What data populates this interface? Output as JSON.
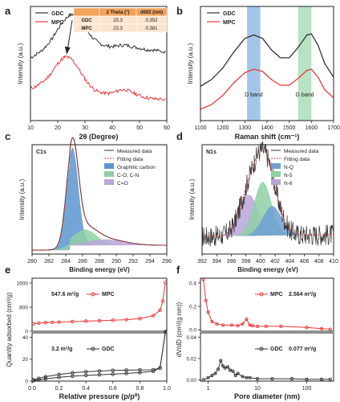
{
  "colors": {
    "gdc": "#333333",
    "mpc": "#e8393a",
    "d_band": "#86b2e3",
    "g_band": "#9fd8b0",
    "graphitic": "#5b95cf",
    "c_o": "#8fd0a6",
    "c_eq_o": "#b9a6d8",
    "nq": "#6f9fd6",
    "n5": "#8fd0a6",
    "n6": "#b9a6d8",
    "table_header": "#f3a25a",
    "table_fill": "#fbe5cf"
  },
  "chart_data": [
    {
      "panel": "a",
      "type": "line",
      "xlabel": "2θ (Degree)",
      "ylabel": "Intensity (a.u.)",
      "xlim": [
        10,
        60
      ],
      "xticks": [
        10,
        20,
        30,
        40,
        50,
        60
      ],
      "series": [
        {
          "name": "GDC",
          "x": [
            10,
            12,
            14,
            16,
            18,
            20,
            22,
            24,
            25.3,
            27,
            29,
            31,
            33,
            35,
            37,
            39,
            41,
            43,
            45,
            47,
            49,
            51,
            53,
            55,
            57,
            60
          ],
          "y": [
            0.55,
            0.58,
            0.61,
            0.66,
            0.72,
            0.8,
            0.87,
            0.92,
            0.93,
            0.91,
            0.85,
            0.78,
            0.72,
            0.68,
            0.66,
            0.65,
            0.65,
            0.66,
            0.66,
            0.65,
            0.64,
            0.63,
            0.62,
            0.62,
            0.61,
            0.6
          ]
        },
        {
          "name": "MPC",
          "x": [
            10,
            12,
            14,
            16,
            18,
            20,
            22,
            23.3,
            25,
            27,
            29,
            31,
            33,
            35,
            37,
            39,
            41,
            43,
            45,
            47,
            49,
            51,
            53,
            55,
            57,
            60
          ],
          "y": [
            0.28,
            0.3,
            0.33,
            0.37,
            0.43,
            0.5,
            0.55,
            0.56,
            0.54,
            0.48,
            0.4,
            0.33,
            0.28,
            0.25,
            0.24,
            0.24,
            0.25,
            0.27,
            0.27,
            0.25,
            0.23,
            0.21,
            0.2,
            0.19,
            0.19,
            0.18
          ]
        }
      ],
      "table": {
        "headers": [
          "",
          "2 Theta (°)",
          "d002 (nm)"
        ],
        "rows": [
          [
            "GDC",
            "25.3",
            "0.352"
          ],
          [
            "MPC",
            "23.3",
            "0.381"
          ]
        ]
      }
    },
    {
      "panel": "b",
      "type": "line",
      "xlabel": "Raman shift (cm⁻¹)",
      "ylabel": "Intensity (a.u.)",
      "xlim": [
        1100,
        1700
      ],
      "xticks": [
        1100,
        1200,
        1300,
        1400,
        1500,
        1600,
        1700
      ],
      "bands": [
        {
          "label": "D band",
          "from": 1310,
          "to": 1370
        },
        {
          "label": "G band",
          "from": 1540,
          "to": 1600
        }
      ],
      "series": [
        {
          "name": "GDC",
          "x": [
            1100,
            1150,
            1200,
            1250,
            1300,
            1340,
            1380,
            1420,
            1460,
            1500,
            1540,
            1580,
            1600,
            1630,
            1660,
            1700
          ],
          "y": [
            0.3,
            0.36,
            0.46,
            0.6,
            0.72,
            0.75,
            0.72,
            0.62,
            0.55,
            0.55,
            0.64,
            0.75,
            0.76,
            0.66,
            0.5,
            0.38
          ]
        },
        {
          "name": "MPC",
          "x": [
            1100,
            1150,
            1200,
            1250,
            1300,
            1340,
            1380,
            1420,
            1460,
            1500,
            1540,
            1580,
            1600,
            1630,
            1660,
            1700
          ],
          "y": [
            0.1,
            0.14,
            0.22,
            0.33,
            0.42,
            0.45,
            0.43,
            0.36,
            0.31,
            0.31,
            0.37,
            0.44,
            0.45,
            0.38,
            0.27,
            0.2
          ]
        }
      ]
    },
    {
      "panel": "c",
      "type": "area",
      "title": "C1s",
      "xlabel": "Binding energy (eV)",
      "ylabel": "Intensity (a.u.)",
      "xlim": [
        280,
        296
      ],
      "xticks": [
        280,
        282,
        284,
        286,
        288,
        290,
        292,
        294,
        296
      ],
      "legend": [
        "Measured data",
        "Fitting data",
        "Graphitic carbon",
        "C-O, C-N",
        "C=O"
      ],
      "peaks": [
        {
          "name": "Graphitic carbon",
          "center": 284.8,
          "height": 1.0,
          "width": 0.7
        },
        {
          "name": "C-O, C-N",
          "center": 286.3,
          "height": 0.16,
          "width": 1.4
        },
        {
          "name": "C=O",
          "center": 288.8,
          "height": 0.06,
          "width": 2.2
        }
      ]
    },
    {
      "panel": "d",
      "type": "area",
      "title": "N1s",
      "xlabel": "Binding energy (eV)",
      "ylabel": "Intensity (a.u.)",
      "xlim": [
        392,
        410
      ],
      "xticks": [
        392,
        394,
        396,
        398,
        400,
        402,
        404,
        406,
        408,
        410
      ],
      "legend": [
        "Measured data",
        "Fitting data",
        "N-Q",
        "N-5",
        "N-6"
      ],
      "peaks": [
        {
          "name": "N-6",
          "center": 398.4,
          "height": 0.42,
          "width": 1.3
        },
        {
          "name": "N-5",
          "center": 400.3,
          "height": 0.55,
          "width": 1.2
        },
        {
          "name": "N-Q",
          "center": 401.6,
          "height": 0.3,
          "width": 1.3
        }
      ]
    },
    {
      "panel": "e",
      "type": "line",
      "xlabel": "Relative pressure (p/p⁰)",
      "ylabel": "Quantity adsorbed (cm³/g)",
      "xlim": [
        0,
        1
      ],
      "xticks": [
        "0.0",
        "0.2",
        "0.4",
        "0.6",
        "0.8",
        "1.0"
      ],
      "subplots": [
        {
          "name": "MPC",
          "annotation": "547.6 m²/g",
          "ylim": [
            0,
            1600
          ],
          "yticks": [
            "0",
            "800",
            "1600"
          ],
          "x": [
            0.01,
            0.05,
            0.1,
            0.15,
            0.2,
            0.3,
            0.4,
            0.5,
            0.6,
            0.7,
            0.8,
            0.9,
            0.95,
            0.97,
            0.99
          ],
          "y": [
            250,
            270,
            285,
            295,
            305,
            320,
            335,
            350,
            365,
            385,
            420,
            520,
            700,
            1000,
            1620
          ]
        },
        {
          "name": "GDC",
          "annotation": "3.2 m²/g",
          "ylim": [
            0,
            40
          ],
          "yticks": [
            "0",
            "20",
            "40"
          ],
          "x": [
            0.01,
            0.05,
            0.1,
            0.2,
            0.3,
            0.4,
            0.5,
            0.6,
            0.7,
            0.8,
            0.9,
            0.95,
            0.99
          ],
          "y": [
            0.5,
            1,
            2,
            3.5,
            4.5,
            5.2,
            5.8,
            6.3,
            7,
            7.8,
            9,
            12,
            45
          ],
          "desorption_y": [
            1,
            2.5,
            4,
            6,
            7.5,
            8.5,
            9.2,
            9.7,
            10,
            10.2,
            10.3,
            12,
            45
          ]
        }
      ]
    },
    {
      "panel": "f",
      "type": "line",
      "xlabel": "Pore diameter (nm)",
      "ylabel": "dV/dD (cm³/(g nm))",
      "xscale": "log",
      "xlim": [
        0.7,
        350
      ],
      "xticks": [
        "1",
        "10",
        "100"
      ],
      "subplots": [
        {
          "name": "MPC",
          "annotation": "2.564 m³/g",
          "ylim": [
            0,
            0.4
          ],
          "yticks": [
            "0.0",
            "0.2",
            "0.4"
          ],
          "x": [
            0.8,
            0.9,
            1.0,
            1.2,
            1.5,
            2,
            3,
            4,
            5,
            6,
            7,
            8,
            10,
            15,
            30,
            100,
            200,
            300
          ],
          "y": [
            0.43,
            0.25,
            0.15,
            0.07,
            0.05,
            0.04,
            0.04,
            0.035,
            0.05,
            0.09,
            0.04,
            0.035,
            0.03,
            0.03,
            0.03,
            0.02,
            0.01,
            0.005
          ]
        },
        {
          "name": "GDC",
          "annotation": "0.077 m³/g",
          "ylim": [
            0,
            0.04
          ],
          "yticks": [
            "0.00",
            "0.02",
            "0.04"
          ],
          "x": [
            0.8,
            1.0,
            1.2,
            1.4,
            1.6,
            1.8,
            2.0,
            2.2,
            2.5,
            2.8,
            3.2,
            3.6,
            4,
            5,
            6,
            7,
            10,
            20,
            50,
            100,
            200,
            300
          ],
          "y": [
            0.0,
            0.002,
            0.004,
            0.006,
            0.01,
            0.018,
            0.013,
            0.011,
            0.012,
            0.009,
            0.008,
            0.004,
            0.006,
            0.003,
            0.002,
            0.002,
            0.001,
            0.001,
            0.001,
            0.0005,
            0.0005,
            0.0005
          ]
        }
      ]
    }
  ],
  "panel_labels": [
    "a",
    "b",
    "c",
    "d",
    "e",
    "f"
  ]
}
